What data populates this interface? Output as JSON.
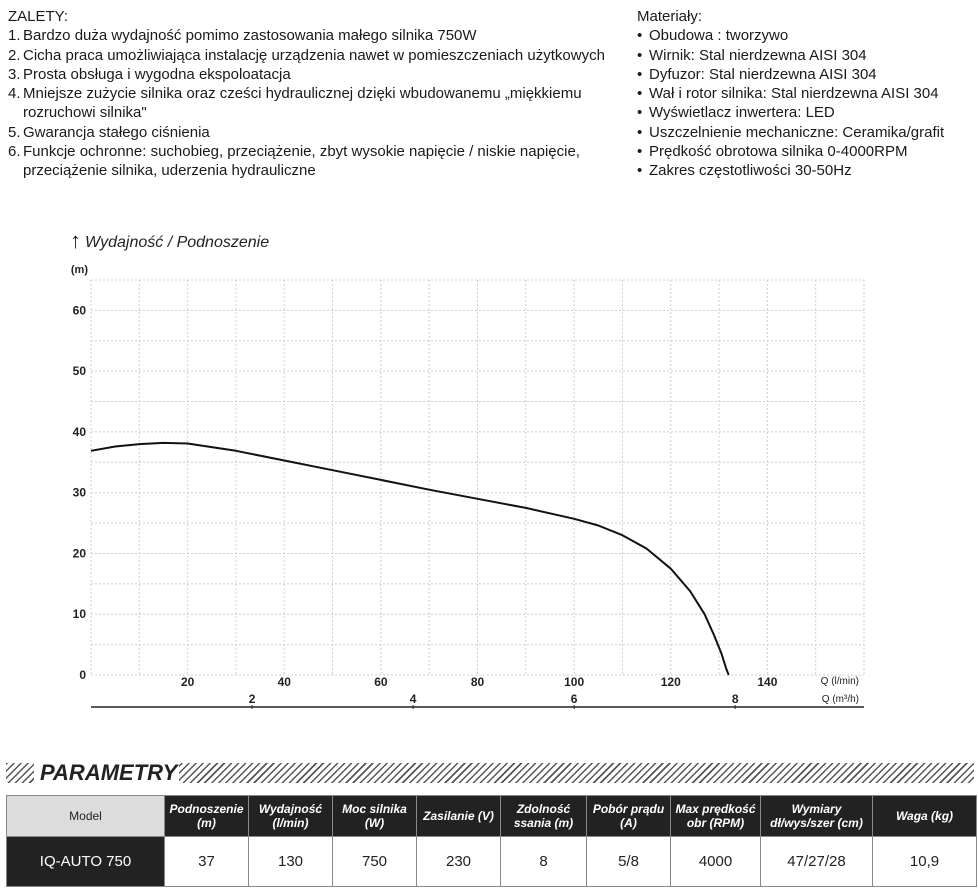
{
  "advantages": {
    "title": "ZALETY:",
    "items": [
      {
        "num": "1.",
        "text": "Bardzo duża wydajność pomimo zastosowania małego silnika 750W"
      },
      {
        "num": "2.",
        "text": "Cicha praca umożliwiająca instalację urządzenia nawet w pomieszczeniach użytkowych"
      },
      {
        "num": "3.",
        "text": "Prosta obsługa i wygodna ekspoloatacja"
      },
      {
        "num": "4.",
        "text": "Mniejsze zużycie silnika oraz cześci hydraulicznej dzięki wbudowanemu „miękkiemu rozruchowi silnika\""
      },
      {
        "num": "5.",
        "text": "Gwarancja stałego ciśnienia"
      },
      {
        "num": "6.",
        "text": "Funkcje ochronne: suchobieg, przeciążenie, zbyt wysokie napięcie / niskie napięcie, przeciążenie silnika, uderzenia hydrauliczne"
      }
    ]
  },
  "materials": {
    "title": "Materiały:",
    "items": [
      "Obudowa : tworzywo",
      "Wirnik: Stal nierdzewna AISI 304",
      "Dyfuzor: Stal nierdzewna AISI 304",
      "Wał i rotor silnika: Stal nierdzewna AISI 304",
      "Wyświetlacz inwertera: LED",
      "Uszczelnienie mechaniczne: Ceramika/grafit",
      "Prędkość obrotowa silnika 0-4000RPM",
      "Zakres częstotliwości 30-50Hz"
    ]
  },
  "chart_data": {
    "type": "line",
    "title": "Wydajność / Podnoszenie",
    "ylabel": "(m)",
    "xlabel": "Q (l/min)",
    "x2label": "Q (m³/h)",
    "xlim": [
      0,
      160
    ],
    "ylim": [
      0,
      65
    ],
    "yticks": [
      0,
      10,
      20,
      30,
      40,
      50,
      60
    ],
    "xticks": [
      20,
      40,
      60,
      80,
      100,
      120,
      140
    ],
    "x2ticks": [
      2,
      4,
      6,
      8
    ],
    "grid": true,
    "series": [
      {
        "x": [
          0,
          5,
          10,
          15,
          20,
          30,
          40,
          50,
          60,
          70,
          80,
          90,
          100,
          105,
          110,
          115,
          120,
          124,
          127,
          129,
          130.5,
          131.5,
          132
        ],
        "y": [
          36.9,
          37.6,
          38.0,
          38.2,
          38.1,
          36.9,
          35.3,
          33.7,
          32.1,
          30.5,
          29.0,
          27.5,
          25.7,
          24.6,
          23.0,
          20.8,
          17.5,
          13.8,
          10.0,
          6.5,
          3.5,
          1.0,
          0
        ]
      }
    ]
  },
  "params": {
    "title": "PARAMETRY",
    "headers": [
      "Model",
      "Podnoszenie (m)",
      "Wydajność (l/min)",
      "Moc silnika (W)",
      "Zasilanie (V)",
      "Zdolność ssania (m)",
      "Pobór prądu (A)",
      "Max prędkość obr (RPM)",
      "Wymiary dł/wys/szer (cm)",
      "Waga (kg)"
    ],
    "row": [
      "IQ-AUTO 750",
      "37",
      "130",
      "750",
      "230",
      "8",
      "5/8",
      "4000",
      "47/27/28",
      "10,9"
    ]
  }
}
